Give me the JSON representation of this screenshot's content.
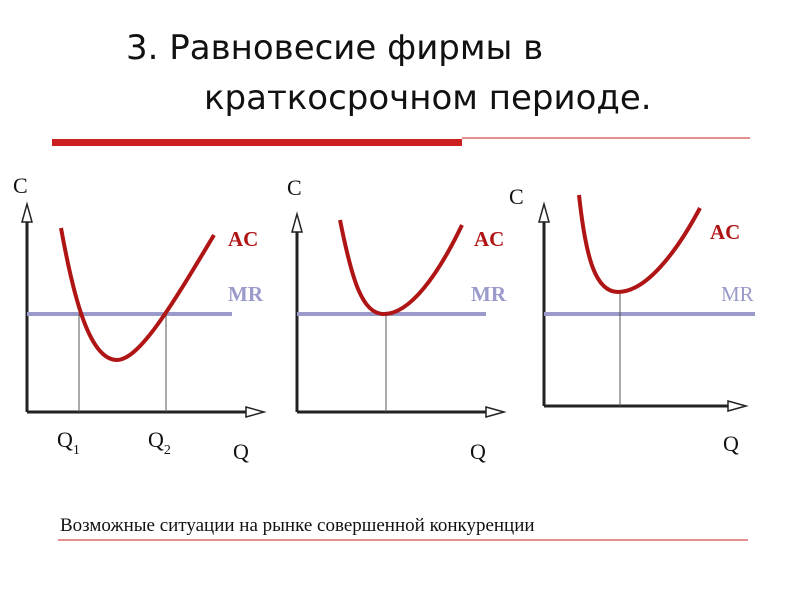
{
  "title": {
    "line1": "3. Равновесие фирмы в",
    "line2": "краткосрочном периоде."
  },
  "colors": {
    "accent_red": "#cc1f1f",
    "ac_curve": "#b01515",
    "mr_line": "#9a9acb",
    "axis": "#222222"
  },
  "graphs": [
    {
      "y_axis": "C",
      "x_axis": "Q",
      "ac_label": "AC",
      "mr_label": "MR",
      "q_labels": [
        {
          "main": "Q",
          "sub": "1"
        },
        {
          "main": "Q",
          "sub": "2"
        }
      ]
    },
    {
      "y_axis": "C",
      "x_axis": "Q",
      "ac_label": "AC",
      "mr_label": "MR"
    },
    {
      "y_axis": "C",
      "x_axis": "Q",
      "ac_label": "AC",
      "mr_label": "MR"
    }
  ],
  "caption": "Возможные ситуации на рынке совершенной конкуренции"
}
